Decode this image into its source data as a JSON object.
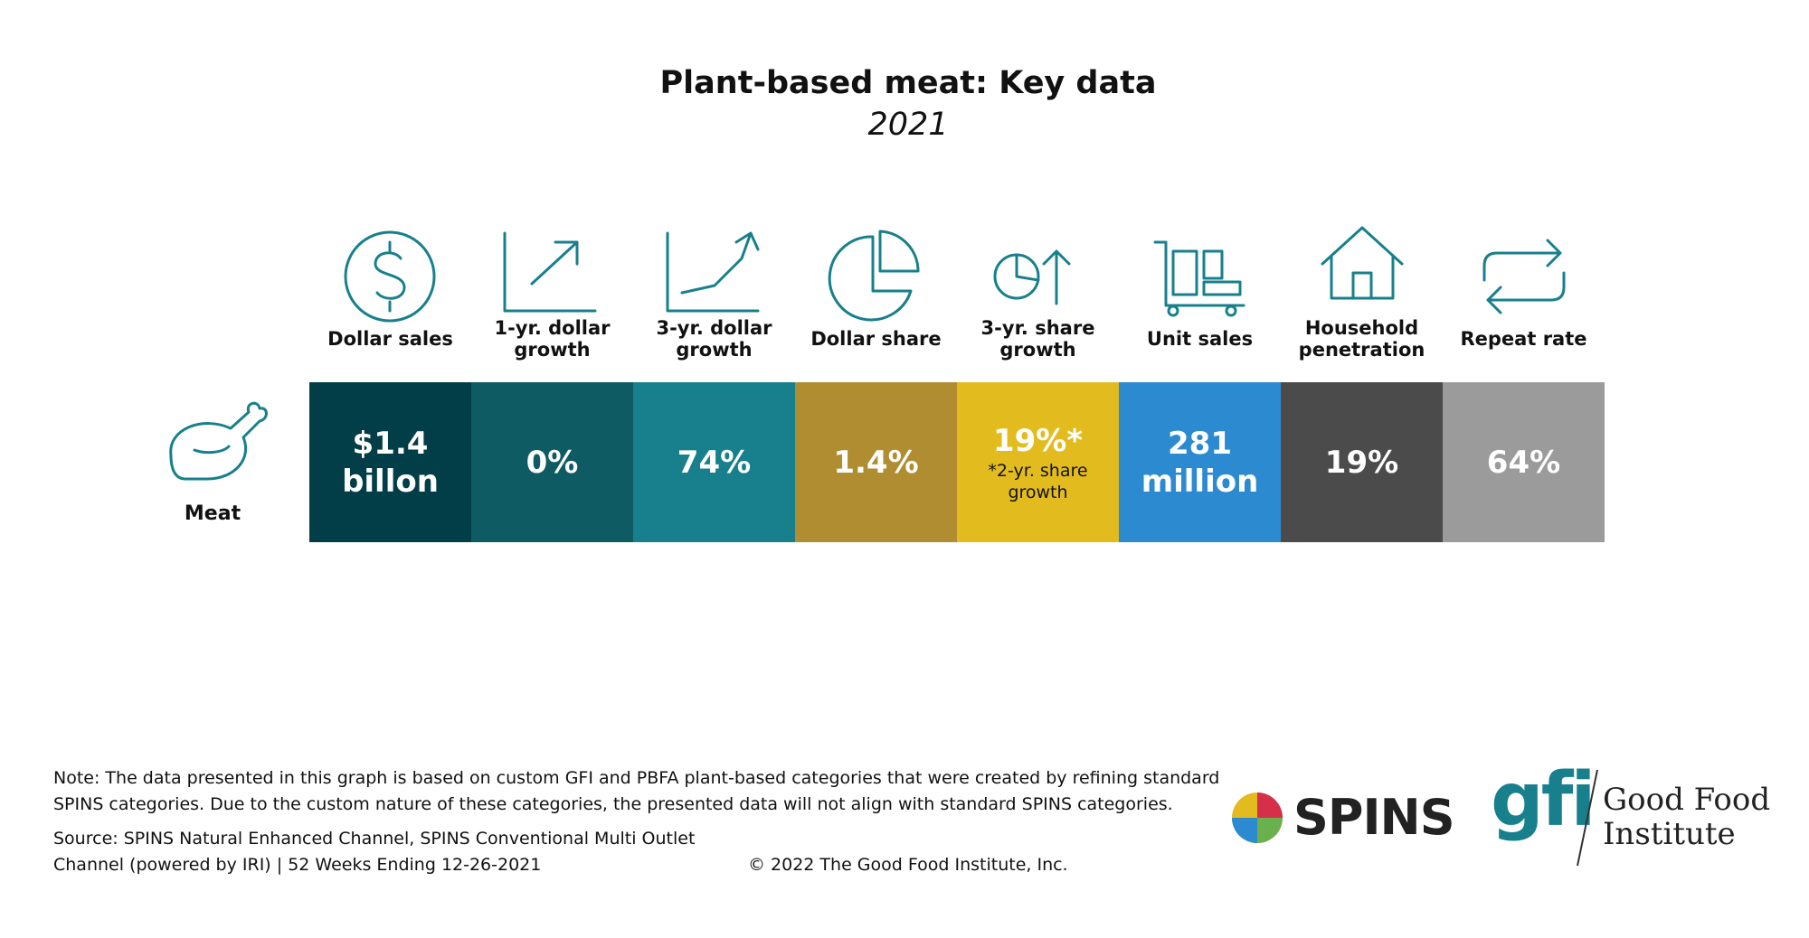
{
  "header": {
    "title": "Plant-based meat: Key data",
    "subtitle": "2021"
  },
  "columns": [
    "Dollar sales",
    "1-yr. dollar growth",
    "3-yr. dollar growth",
    "Dollar share",
    "3-yr. share growth",
    "Unit sales",
    "Household penetration",
    "Repeat rate"
  ],
  "rows": [
    {
      "label": "Meat",
      "cells": [
        {
          "value": "$1.4 billon"
        },
        {
          "value": "0%"
        },
        {
          "value": "74%"
        },
        {
          "value": "1.4%"
        },
        {
          "value": "19%*",
          "note": "*2-yr. share growth"
        },
        {
          "value": "281 million"
        },
        {
          "value": "19%"
        },
        {
          "value": "64%"
        }
      ]
    }
  ],
  "footer": {
    "note": [
      "Note: The data presented in this graph is based on custom GFI and PBFA plant-based categories that were created by refining standard",
      "SPINS categories. Due to the custom nature of these categories, the presented data will not align with standard SPINS categories."
    ],
    "source": [
      "Source: SPINS Natural Enhanced Channel, SPINS Conventional Multi Outlet",
      "Channel (powered by IRI) | 52 Weeks Ending 12-26-2021"
    ],
    "copyright": "© 2022 The Good Food Institute, Inc."
  },
  "logos": {
    "spins": "SPINS",
    "gfi": "gfi",
    "gfi_name": [
      "Good Food",
      "Institute"
    ]
  }
}
